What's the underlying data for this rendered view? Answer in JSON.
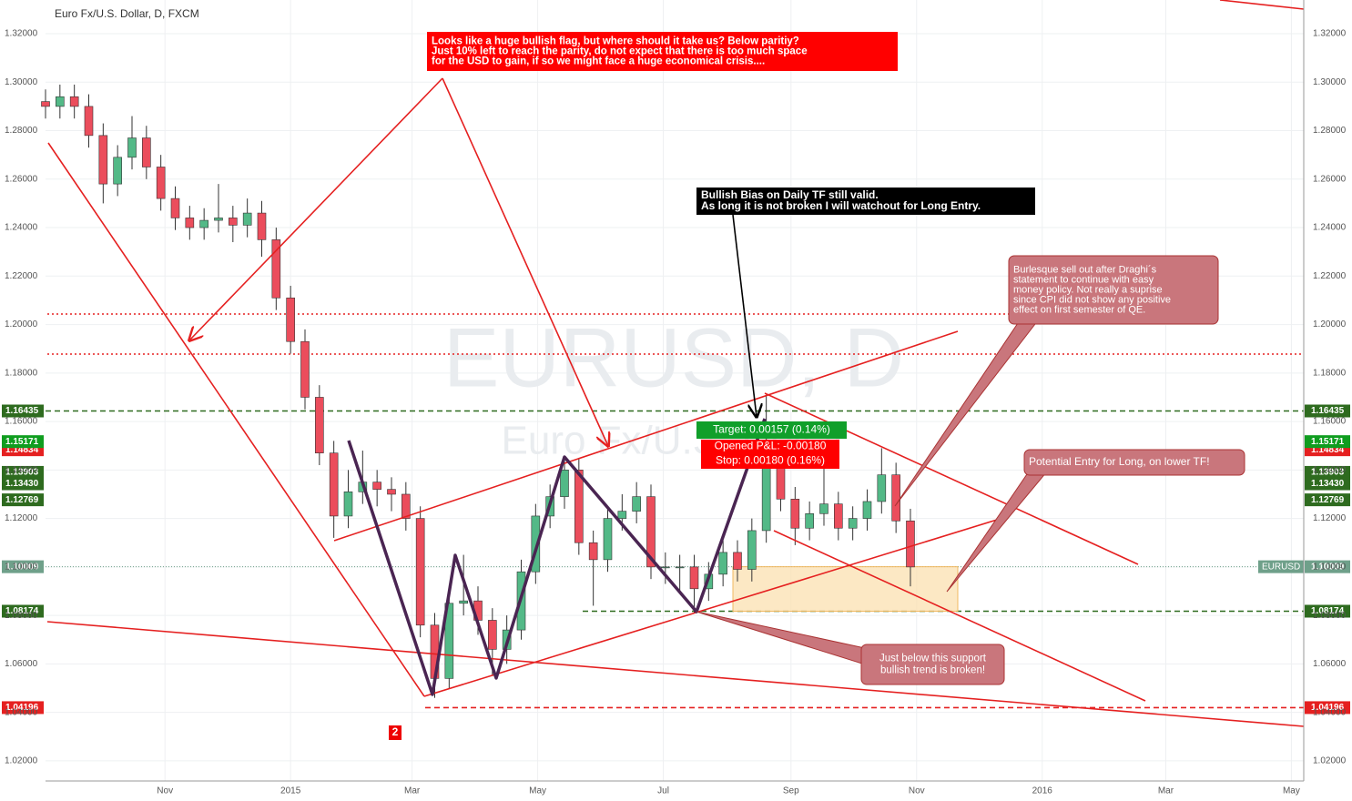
{
  "chart_data": {
    "type": "candlestick",
    "title": "Euro Fx/U.S. Dollar, D, FXCM",
    "watermark": [
      "EURUSD, D",
      "Euro Fx/U.S. Dollar"
    ],
    "up_color": "#53b987",
    "down_color": "#eb4d5c",
    "xlim": [
      0,
      611
    ],
    "xticks": [
      {
        "value": 58,
        "label": "Nov"
      },
      {
        "value": 119,
        "label": "2015"
      },
      {
        "value": 178,
        "label": "Mar"
      },
      {
        "value": 239,
        "label": "May"
      },
      {
        "value": 300,
        "label": "Jul"
      },
      {
        "value": 362,
        "label": "Sep"
      },
      {
        "value": 423,
        "label": "Nov"
      },
      {
        "value": 484,
        "label": "2016"
      },
      {
        "value": 544,
        "label": "Mar"
      },
      {
        "value": 605,
        "label": "May"
      }
    ],
    "ylim": [
      1.0117,
      1.3339
    ],
    "yticks": [
      {
        "value": 1.02,
        "label": "1.02000"
      },
      {
        "value": 1.04,
        "label": "1.04000"
      },
      {
        "value": 1.06,
        "label": "1.06000"
      },
      {
        "value": 1.08,
        "label": "1.08000"
      },
      {
        "value": 1.1,
        "label": "1.10000"
      },
      {
        "value": 1.12,
        "label": "1.12000"
      },
      {
        "value": 1.14,
        "label": "1.14000"
      },
      {
        "value": 1.16,
        "label": "1.16000"
      },
      {
        "value": 1.18,
        "label": "1.18000"
      },
      {
        "value": 1.2,
        "label": "1.20000"
      },
      {
        "value": 1.22,
        "label": "1.22000"
      },
      {
        "value": 1.24,
        "label": "1.24000"
      },
      {
        "value": 1.26,
        "label": "1.26000"
      },
      {
        "value": 1.28,
        "label": "1.28000"
      },
      {
        "value": 1.3,
        "label": "1.30000"
      },
      {
        "value": 1.32,
        "label": "1.32000"
      }
    ],
    "grid": true,
    "x": [
      0,
      7,
      14,
      21,
      28,
      35,
      42,
      49,
      56,
      63,
      70,
      77,
      84,
      91,
      98,
      105,
      112,
      119,
      126,
      133,
      140,
      147,
      154,
      161,
      168,
      175,
      182,
      189,
      196,
      203,
      210,
      217,
      224,
      231,
      238,
      245,
      252,
      259,
      266,
      273,
      280,
      287,
      294,
      301,
      308,
      315,
      322,
      329,
      336,
      343,
      350,
      357,
      364,
      371,
      378,
      385,
      392,
      399,
      406,
      413,
      420
    ],
    "open": [
      1.292,
      1.29,
      1.294,
      1.29,
      1.278,
      1.258,
      1.269,
      1.277,
      1.265,
      1.252,
      1.244,
      1.24,
      1.243,
      1.244,
      1.241,
      1.246,
      1.235,
      1.211,
      1.193,
      1.17,
      1.147,
      1.121,
      1.131,
      1.135,
      1.132,
      1.13,
      1.12,
      1.076,
      1.054,
      1.085,
      1.086,
      1.078,
      1.066,
      1.074,
      1.098,
      1.121,
      1.129,
      1.14,
      1.11,
      1.103,
      1.12,
      1.123,
      1.129,
      1.1,
      1.1,
      1.1,
      1.091,
      1.097,
      1.106,
      1.099,
      1.115,
      1.143,
      1.128,
      1.116,
      1.122,
      1.126,
      1.116,
      1.12,
      1.127,
      1.138,
      1.119
    ],
    "high": [
      1.297,
      1.299,
      1.299,
      1.295,
      1.283,
      1.274,
      1.286,
      1.282,
      1.27,
      1.257,
      1.249,
      1.248,
      1.258,
      1.249,
      1.252,
      1.251,
      1.24,
      1.216,
      1.198,
      1.175,
      1.152,
      1.14,
      1.148,
      1.14,
      1.137,
      1.135,
      1.125,
      1.081,
      1.09,
      1.105,
      1.092,
      1.083,
      1.08,
      1.103,
      1.126,
      1.134,
      1.145,
      1.145,
      1.115,
      1.125,
      1.13,
      1.135,
      1.134,
      1.106,
      1.105,
      1.105,
      1.102,
      1.111,
      1.111,
      1.12,
      1.171,
      1.15,
      1.133,
      1.127,
      1.142,
      1.131,
      1.125,
      1.132,
      1.149,
      1.143,
      1.124
    ],
    "low": [
      1.285,
      1.285,
      1.285,
      1.273,
      1.25,
      1.253,
      1.264,
      1.26,
      1.247,
      1.239,
      1.235,
      1.235,
      1.238,
      1.234,
      1.236,
      1.228,
      1.206,
      1.188,
      1.165,
      1.142,
      1.112,
      1.116,
      1.126,
      1.125,
      1.123,
      1.115,
      1.071,
      1.046,
      1.05,
      1.08,
      1.072,
      1.055,
      1.06,
      1.07,
      1.093,
      1.116,
      1.124,
      1.105,
      1.084,
      1.098,
      1.115,
      1.118,
      1.095,
      1.093,
      1.09,
      1.081,
      1.086,
      1.092,
      1.094,
      1.094,
      1.11,
      1.123,
      1.109,
      1.111,
      1.117,
      1.111,
      1.111,
      1.115,
      1.122,
      1.114,
      1.092
    ],
    "close": [
      1.29,
      1.294,
      1.29,
      1.278,
      1.258,
      1.269,
      1.277,
      1.265,
      1.252,
      1.244,
      1.24,
      1.243,
      1.244,
      1.241,
      1.246,
      1.235,
      1.211,
      1.193,
      1.17,
      1.147,
      1.121,
      1.131,
      1.135,
      1.132,
      1.13,
      1.12,
      1.076,
      1.054,
      1.085,
      1.086,
      1.078,
      1.066,
      1.074,
      1.098,
      1.121,
      1.129,
      1.14,
      1.11,
      1.103,
      1.12,
      1.123,
      1.129,
      1.1,
      1.1,
      1.1,
      1.091,
      1.097,
      1.106,
      1.099,
      1.115,
      1.143,
      1.128,
      1.116,
      1.122,
      1.126,
      1.116,
      1.12,
      1.127,
      1.138,
      1.119,
      1.1
    ],
    "price_labels": [
      {
        "value": 1.14834,
        "color": "#e52020"
      },
      {
        "value": 1.16435,
        "color": "#2e6b1f",
        "line": "dashed"
      },
      {
        "value": 1.15171,
        "color": "#0f9d1f"
      },
      {
        "value": 1.13903,
        "color": "#2e6b1f"
      },
      {
        "value": 1.1343,
        "label": "1.13430",
        "color": "#2e6b1f"
      },
      {
        "value": 1.12769,
        "color": "#2e6b1f"
      },
      {
        "value": 1.10009,
        "color": "#6fa08a",
        "line": "dotted"
      },
      {
        "value": 1.08174,
        "color": "#2e6b1f",
        "line": "dashed"
      },
      {
        "value": 1.04196,
        "color": "#e52020",
        "line": "dashed"
      }
    ],
    "symbol_label": "EURUSD",
    "annotations": [
      {
        "lines": [
          "Looks like a huge bullish flag, but where should it take us? Below paritiy?",
          "Just 10% left to reach the parity, do not expect that there is too much space",
          "for the USD to gain, if so we might face a huge economical crisis...."
        ]
      },
      {
        "lines": [
          "Bullish Bias on Daily TF still valid.",
          "As long it is not broken I will watchout for Long Entry."
        ]
      },
      {
        "lines": [
          "Burlesque sell out after Draghi´s",
          "statement to continue with easy",
          "money policy. Not really a suprise",
          "since CPI did not show any positive",
          "effect on first semester of QE."
        ]
      },
      {
        "lines": [
          "Potential Entry for Long, on lower TF!"
        ]
      },
      {
        "lines": [
          "Just below this support",
          "bullish trend is broken!"
        ]
      },
      {
        "lines": [
          "Target: 0.00157 (0.14%)"
        ]
      },
      {
        "lines": [
          "Opened P&L: -0.00180"
        ]
      },
      {
        "lines": [
          "Stop: 0.00180 (0.16%)"
        ]
      },
      {
        "lines": [
          "2"
        ]
      }
    ]
  }
}
